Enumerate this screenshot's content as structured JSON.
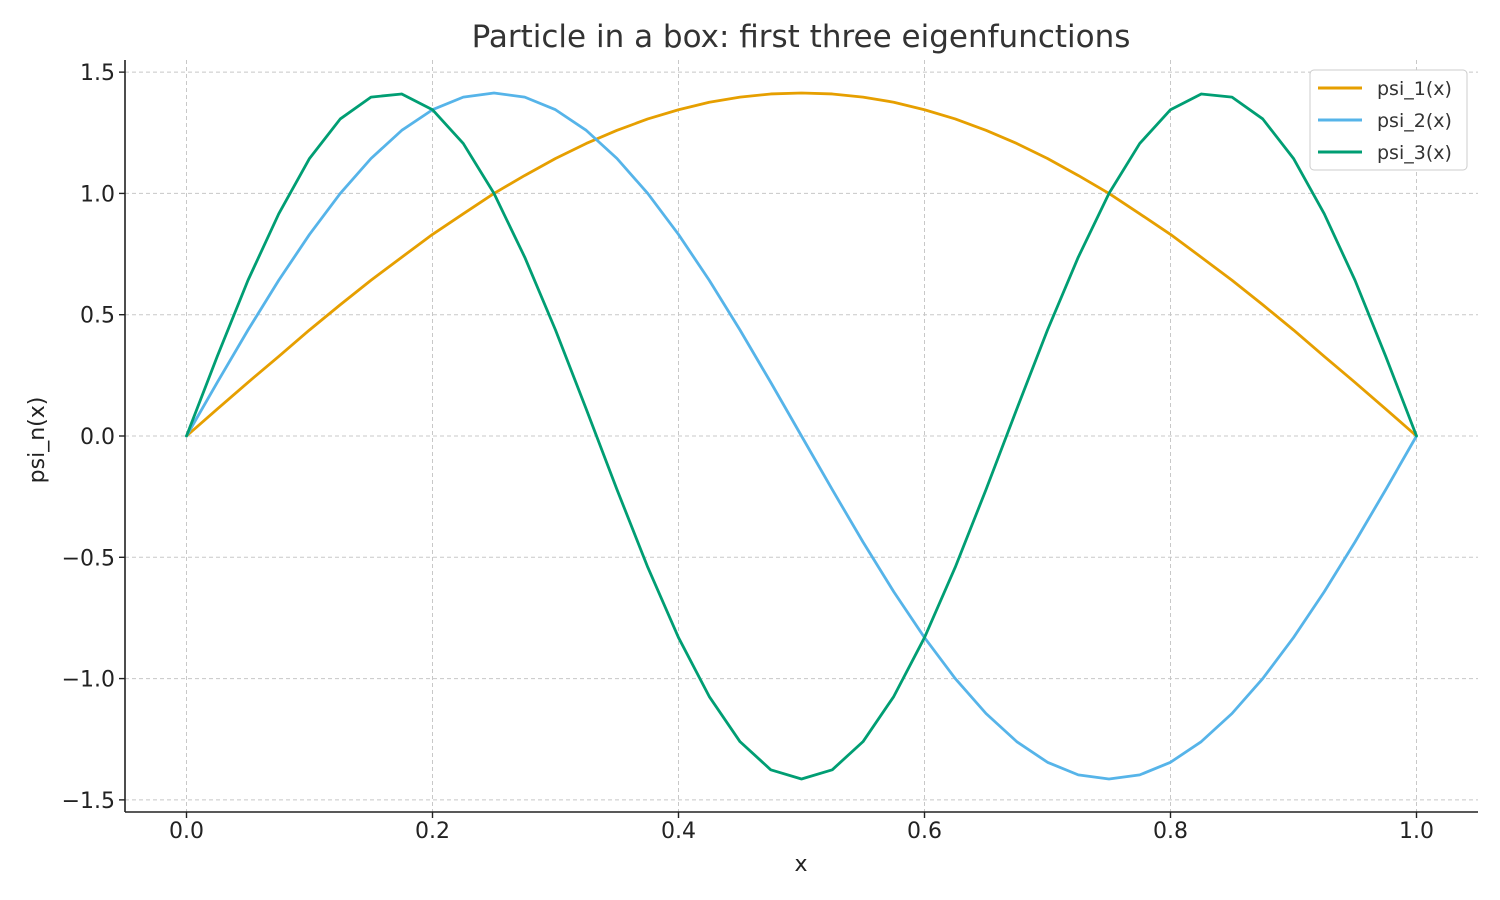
{
  "chart_data": {
    "type": "line",
    "title": "Particle in a box: first three eigenfunctions",
    "xlabel": "x",
    "ylabel": "psi_n(x)",
    "xlim": [
      -0.05,
      1.05
    ],
    "ylim": [
      -1.55,
      1.55
    ],
    "xticks": [
      0.0,
      0.2,
      0.4,
      0.6,
      0.8,
      1.0
    ],
    "xtick_labels": [
      "0.0",
      "0.2",
      "0.4",
      "0.6",
      "0.8",
      "1.0"
    ],
    "yticks": [
      1.5,
      1.0,
      0.5,
      0.0,
      -0.5,
      -1.0,
      -1.5
    ],
    "ytick_labels": [
      "1.5",
      "1.0",
      "0.5",
      "0.0",
      "−0.5",
      "−1.0",
      "−1.5"
    ],
    "grid": true,
    "legend_position": "top-right",
    "x": [
      0.0,
      0.025,
      0.05,
      0.075,
      0.1,
      0.125,
      0.15,
      0.175,
      0.2,
      0.225,
      0.25,
      0.275,
      0.3,
      0.325,
      0.35,
      0.375,
      0.4,
      0.425,
      0.45,
      0.475,
      0.5,
      0.525,
      0.55,
      0.575,
      0.6,
      0.625,
      0.65,
      0.675,
      0.7,
      0.725,
      0.75,
      0.775,
      0.8,
      0.825,
      0.85,
      0.875,
      0.9,
      0.925,
      0.95,
      0.975,
      1.0
    ],
    "series": [
      {
        "name": "psi_1(x)",
        "color": "#E69F00",
        "values": [
          0.0,
          0.111,
          0.221,
          0.328,
          0.437,
          0.541,
          0.642,
          0.737,
          0.831,
          0.916,
          1.0,
          1.074,
          1.144,
          1.206,
          1.26,
          1.307,
          1.345,
          1.376,
          1.397,
          1.41,
          1.414,
          1.41,
          1.397,
          1.376,
          1.345,
          1.307,
          1.26,
          1.206,
          1.144,
          1.074,
          1.0,
          0.916,
          0.831,
          0.737,
          0.642,
          0.541,
          0.437,
          0.328,
          0.221,
          0.111,
          0.0
        ]
      },
      {
        "name": "psi_2(x)",
        "color": "#56B4E9",
        "values": [
          0.0,
          0.221,
          0.437,
          0.642,
          0.831,
          1.0,
          1.144,
          1.26,
          1.345,
          1.397,
          1.414,
          1.397,
          1.345,
          1.26,
          1.144,
          1.0,
          0.831,
          0.642,
          0.437,
          0.221,
          0.0,
          -0.221,
          -0.437,
          -0.642,
          -0.831,
          -1.0,
          -1.144,
          -1.26,
          -1.345,
          -1.397,
          -1.414,
          -1.397,
          -1.345,
          -1.26,
          -1.144,
          -1.0,
          -0.831,
          -0.642,
          -0.437,
          -0.221,
          0.0
        ]
      },
      {
        "name": "psi_3(x)",
        "color": "#009E73",
        "values": [
          0.0,
          0.328,
          0.642,
          0.916,
          1.144,
          1.307,
          1.397,
          1.41,
          1.345,
          1.206,
          1.0,
          0.737,
          0.437,
          0.111,
          -0.221,
          -0.541,
          -0.831,
          -1.074,
          -1.26,
          -1.376,
          -1.414,
          -1.376,
          -1.26,
          -1.074,
          -0.831,
          -0.541,
          -0.221,
          0.111,
          0.437,
          0.737,
          1.0,
          1.206,
          1.345,
          1.41,
          1.397,
          1.307,
          1.144,
          0.916,
          0.642,
          0.328,
          0.0
        ]
      }
    ]
  }
}
